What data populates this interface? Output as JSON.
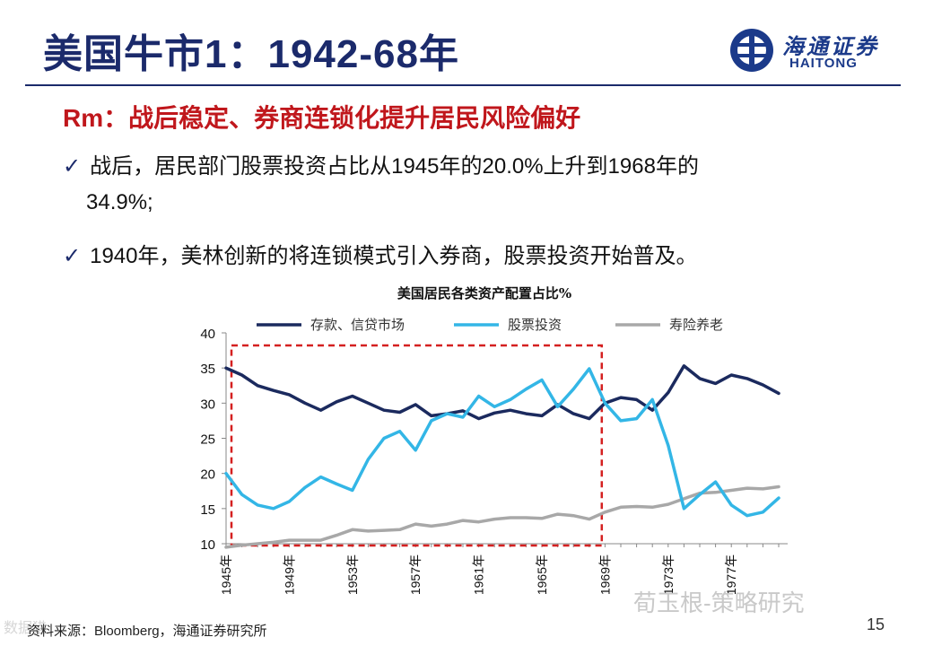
{
  "slide": {
    "title": "美国牛市1：1942-68年",
    "logo_cn": "海通证券",
    "logo_en": "HAITONG",
    "subtitle": "Rm：战后稳定、券商连锁化提升居民风险偏好",
    "bullet1_line1": "战后，居民部门股票投资占比从1945年的20.0%上升到1968年的",
    "bullet1_line2": "34.9%;",
    "bullet2": "1940年，美林创新的将连锁模式引入券商，股票投资开始普及。",
    "check_glyph": "✓",
    "source": "资料来源：Bloomberg，海通证券研究所",
    "page_number": "15",
    "watermark": "荀玉根-策略研究",
    "watermark_left": "数据猎"
  },
  "colors": {
    "title": "#1b2a6b",
    "subtitle": "#c0171c",
    "deposit": "#1b2a5e",
    "stock": "#33b6e6",
    "insurance": "#a8a8a8",
    "highlight_box": "#d42020"
  },
  "chart_data": {
    "type": "line",
    "title": "美国居民各类资产配置占比%",
    "ylim": [
      10,
      40
    ],
    "yticks": [
      10,
      15,
      20,
      25,
      30,
      35,
      40
    ],
    "x": [
      1945,
      1946,
      1947,
      1948,
      1949,
      1950,
      1951,
      1952,
      1953,
      1954,
      1955,
      1956,
      1957,
      1958,
      1959,
      1960,
      1961,
      1962,
      1963,
      1964,
      1965,
      1966,
      1967,
      1968,
      1969,
      1970,
      1971,
      1972,
      1973,
      1974,
      1975,
      1976,
      1977,
      1978,
      1979,
      1980
    ],
    "xticks": [
      "1945年",
      "1949年",
      "1953年",
      "1957年",
      "1961年",
      "1965年",
      "1969年",
      "1973年",
      "1977年"
    ],
    "legend_position": "top",
    "series": [
      {
        "name": "存款、信贷市场",
        "color_key": "deposit",
        "values": [
          35.0,
          34.0,
          32.5,
          31.8,
          31.2,
          30.0,
          29.0,
          30.2,
          31.0,
          30.0,
          29.0,
          28.7,
          29.8,
          28.2,
          28.5,
          28.9,
          27.8,
          28.6,
          29.0,
          28.5,
          28.2,
          29.8,
          28.5,
          27.8,
          30.0,
          30.8,
          30.5,
          29.0,
          31.5,
          35.3,
          33.5,
          32.8,
          34.0,
          33.5,
          32.6,
          31.4
        ]
      },
      {
        "name": "股票投资",
        "color_key": "stock",
        "values": [
          20.0,
          17.0,
          15.5,
          15.0,
          16.0,
          18.0,
          19.5,
          18.5,
          17.6,
          22.0,
          25.0,
          26.0,
          23.3,
          27.5,
          28.5,
          28.0,
          31.0,
          29.5,
          30.5,
          32.0,
          33.3,
          29.5,
          32.0,
          34.9,
          30.0,
          27.5,
          27.8,
          30.5,
          24.0,
          15.0,
          17.0,
          18.8,
          15.5,
          14.0,
          14.5,
          16.5
        ]
      },
      {
        "name": "寿险养老",
        "color_key": "insurance",
        "values": [
          9.5,
          9.8,
          10.0,
          10.2,
          10.5,
          10.5,
          10.5,
          11.2,
          12.0,
          11.8,
          11.9,
          12.0,
          12.8,
          12.5,
          12.8,
          13.3,
          13.1,
          13.5,
          13.7,
          13.7,
          13.6,
          14.2,
          14.0,
          13.5,
          14.5,
          15.2,
          15.3,
          15.2,
          15.6,
          16.4,
          17.2,
          17.3,
          17.6,
          17.9,
          17.8,
          18.1
        ]
      }
    ],
    "highlight_range": [
      1945,
      1968
    ]
  }
}
